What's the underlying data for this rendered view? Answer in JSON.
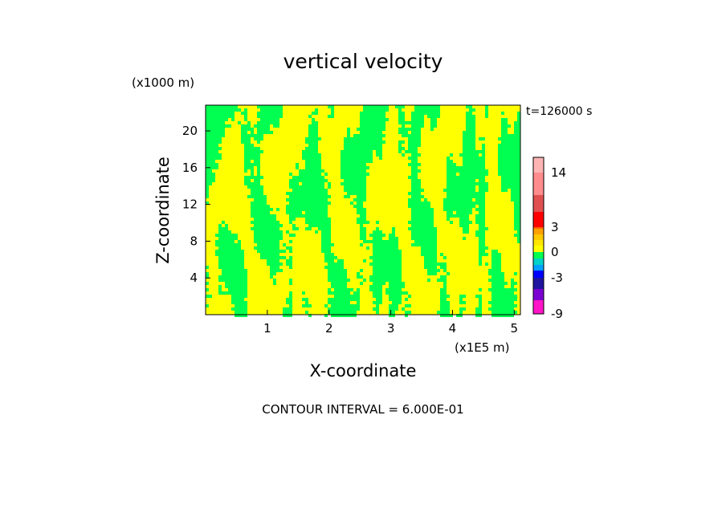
{
  "chart_data": {
    "type": "heatmap",
    "title": "vertical velocity",
    "xlabel": "X-coordinate",
    "ylabel": "Z-coordinate",
    "x_unit": "(x1E5 m)",
    "y_unit": "(x1000 m)",
    "time_label": "t=126000 s",
    "footer": "CONTOUR INTERVAL = 6.000E-01",
    "xlim": [
      0,
      5.1
    ],
    "ylim": [
      0,
      22.8
    ],
    "x_ticks": [
      "1",
      "2",
      "3",
      "4",
      "5"
    ],
    "y_ticks": [
      "4",
      "8",
      "12",
      "16",
      "20"
    ],
    "x_tick_values": [
      1,
      2,
      3,
      4,
      5
    ],
    "y_tick_values": [
      4,
      8,
      12,
      16,
      20
    ],
    "field_levels": [
      {
        "name": "weak-updraft",
        "range": [
          0,
          0.6
        ],
        "color": "#ffff00"
      },
      {
        "name": "weak-downdraft",
        "range": [
          -0.6,
          0
        ],
        "color": "#00ff50"
      }
    ],
    "colorbar": {
      "tick_labels": [
        "14",
        "3",
        "0",
        "-3",
        "-9"
      ],
      "tick_values": [
        14,
        3,
        0,
        -3,
        -9
      ],
      "segments": [
        {
          "from": -9,
          "to": -6,
          "color": "#ff14c8"
        },
        {
          "from": -6,
          "to": -4.5,
          "color": "#7b00d2"
        },
        {
          "from": -4.5,
          "to": -3,
          "color": "#1e14a0"
        },
        {
          "from": -3,
          "to": -2,
          "color": "#0000ff"
        },
        {
          "from": -2,
          "to": -1.2,
          "color": "#00a0ff"
        },
        {
          "from": -1.2,
          "to": -0.6,
          "color": "#00d2c8"
        },
        {
          "from": -0.6,
          "to": 0,
          "color": "#00ff50"
        },
        {
          "from": 0,
          "to": 0.6,
          "color": "#ffff00"
        },
        {
          "from": 0.6,
          "to": 1.2,
          "color": "#ffe600"
        },
        {
          "from": 1.2,
          "to": 1.8,
          "color": "#ffc800"
        },
        {
          "from": 1.8,
          "to": 2.4,
          "color": "#ffa000"
        },
        {
          "from": 2.4,
          "to": 3,
          "color": "#ff6400"
        },
        {
          "from": 3,
          "to": 6,
          "color": "#ff0000"
        },
        {
          "from": 6,
          "to": 10,
          "color": "#e05050"
        },
        {
          "from": 10,
          "to": 14,
          "color": "#ff8c8c"
        },
        {
          "from": 14,
          "to": 17,
          "color": "#ffb4b4"
        }
      ]
    }
  }
}
